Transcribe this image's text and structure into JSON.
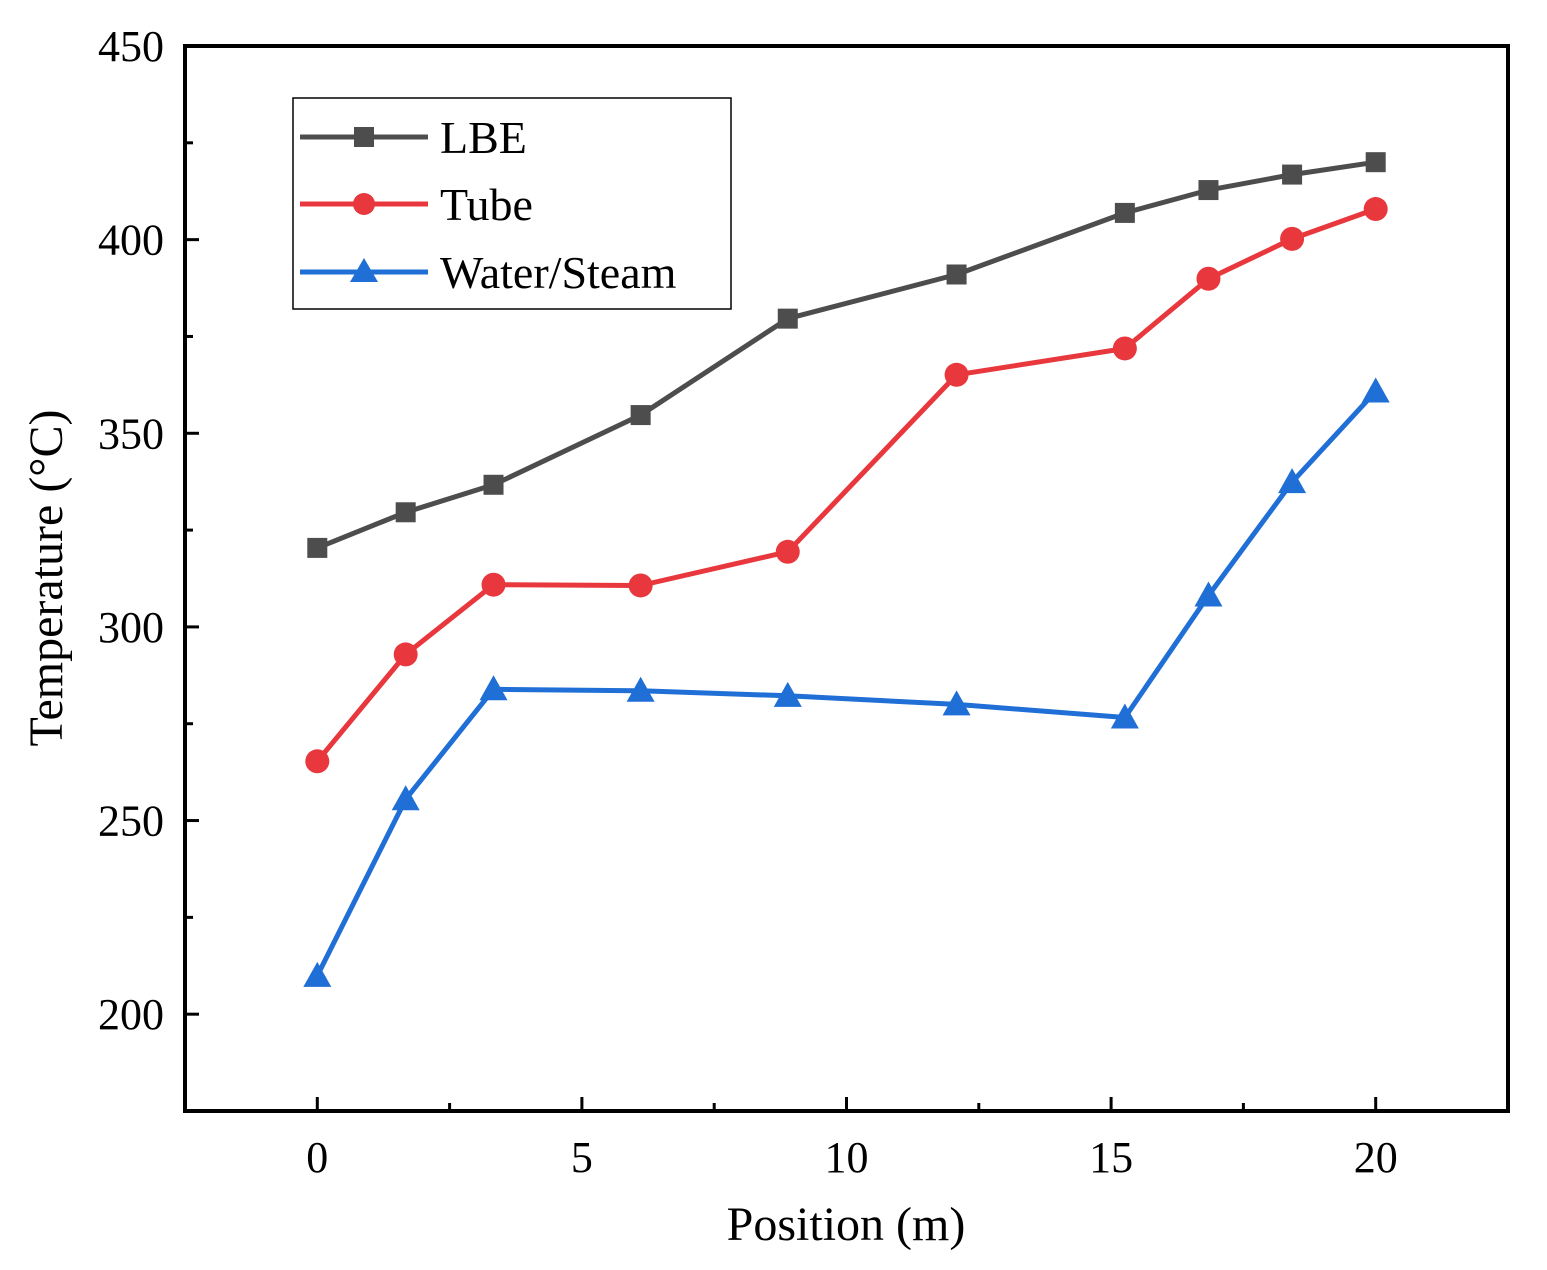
{
  "chart_data": {
    "type": "line",
    "title": "",
    "xlabel": "Position (m)",
    "ylabel": "Temperature (°C)",
    "xlim": [
      -2.5,
      22.5
    ],
    "ylim": [
      175,
      450
    ],
    "x_ticks": [
      0,
      5,
      10,
      15,
      20
    ],
    "y_ticks": [
      200,
      250,
      300,
      350,
      400,
      450
    ],
    "x_tick_labels": [
      "0",
      "5",
      "10",
      "15",
      "20"
    ],
    "y_tick_labels": [
      "200",
      "250",
      "300",
      "350",
      "400",
      "450"
    ],
    "grid": false,
    "legend_position": "top-left",
    "series": [
      {
        "name": "LBE",
        "color": "#4d4d4d",
        "marker": "square",
        "x": [
          0,
          1.67,
          3.33,
          6.11,
          8.89,
          12.08,
          15.26,
          16.84,
          18.42,
          20
        ],
        "y": [
          320.4,
          329.6,
          336.7,
          354.7,
          379.6,
          391.0,
          406.9,
          412.8,
          416.8,
          420.0
        ]
      },
      {
        "name": "Tube",
        "color": "#e8383d",
        "marker": "circle",
        "x": [
          0,
          1.67,
          3.33,
          6.11,
          8.89,
          12.08,
          15.26,
          16.84,
          18.42,
          20
        ],
        "y": [
          265.3,
          292.9,
          310.9,
          310.7,
          319.4,
          365.1,
          371.9,
          389.9,
          400.2,
          407.9
        ]
      },
      {
        "name": "Water/Steam",
        "color": "#1f6fd6",
        "marker": "triangle",
        "x": [
          0,
          1.67,
          3.33,
          6.11,
          8.89,
          12.08,
          15.26,
          16.84,
          18.42,
          20
        ],
        "y": [
          209.9,
          255.5,
          283.9,
          283.5,
          282.2,
          280.0,
          276.6,
          308.1,
          337.4,
          360.8
        ]
      }
    ]
  }
}
